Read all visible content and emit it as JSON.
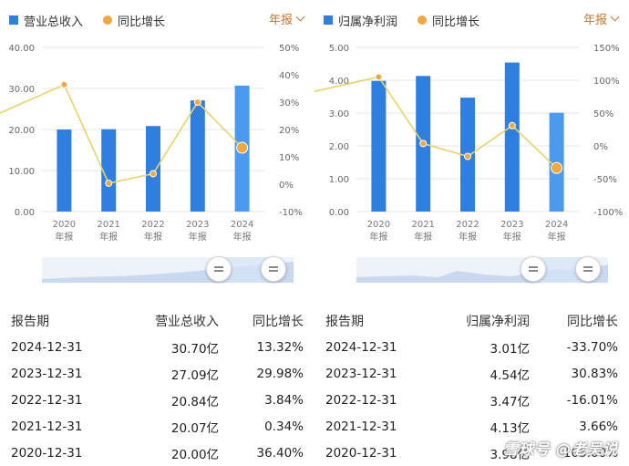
{
  "left": {
    "legend": {
      "bar": "营业总收入",
      "line": "同比增长"
    },
    "period": "年报",
    "y_left_ticks": [
      "40.00",
      "30.00",
      "20.00",
      "10.00",
      "0.00"
    ],
    "y_right_ticks": [
      "50%",
      "40%",
      "30%",
      "20%",
      "10%",
      "0%",
      "-10%"
    ],
    "x_labels": [
      [
        "2020",
        "年报"
      ],
      [
        "2021",
        "年报"
      ],
      [
        "2022",
        "年报"
      ],
      [
        "2023",
        "年报"
      ],
      [
        "2024",
        "年报"
      ]
    ],
    "table": {
      "headers": [
        "报告期",
        "营业总收入",
        "同比增长"
      ],
      "rows": [
        [
          "2024-12-31",
          "30.70亿",
          "13.32%"
        ],
        [
          "2023-12-31",
          "27.09亿",
          "29.98%"
        ],
        [
          "2022-12-31",
          "20.84亿",
          "3.84%"
        ],
        [
          "2021-12-31",
          "20.07亿",
          "0.34%"
        ],
        [
          "2020-12-31",
          "20.00亿",
          "36.40%"
        ]
      ]
    }
  },
  "right": {
    "legend": {
      "bar": "归属净利润",
      "line": "同比增长"
    },
    "period": "年报",
    "y_left_ticks": [
      "5.00",
      "4.00",
      "3.00",
      "2.00",
      "1.00",
      "0.00"
    ],
    "y_right_ticks": [
      "150%",
      "100%",
      "50%",
      "0%",
      "-50%",
      "-100%"
    ],
    "x_labels": [
      [
        "2020",
        "年报"
      ],
      [
        "2021",
        "年报"
      ],
      [
        "2022",
        "年报"
      ],
      [
        "2023",
        "年报"
      ],
      [
        "2024",
        "年报"
      ]
    ],
    "table": {
      "headers": [
        "报告期",
        "归属净利润",
        "同比增长"
      ],
      "rows": [
        [
          "2024-12-31",
          "3.01亿",
          "-33.70%"
        ],
        [
          "2023-12-31",
          "4.54亿",
          "30.83%"
        ],
        [
          "2022-12-31",
          "3.47亿",
          "-16.01%"
        ],
        [
          "2021-12-31",
          "4.13亿",
          "3.66%"
        ],
        [
          "2020-12-31",
          "3.98亿",
          "105.00%"
        ]
      ]
    }
  },
  "colors": {
    "bar": "#2f7fe0",
    "bar_highlight": "#4a9af0",
    "line": "#e6d46a",
    "dot": "#f2a83a",
    "positive": "#d6383a",
    "negative": "#1c9a3b",
    "period": "#c8742b"
  },
  "watermark": "雪球号 @老吴说",
  "chart_data": [
    {
      "type": "bar",
      "categories": [
        "2020",
        "2021",
        "2022",
        "2023",
        "2024"
      ],
      "series": [
        {
          "name": "营业总收入",
          "values": [
            20.0,
            20.07,
            20.84,
            27.09,
            30.7
          ],
          "axis": "left"
        },
        {
          "name": "同比增长",
          "values": [
            36.4,
            0.34,
            3.84,
            29.98,
            13.32
          ],
          "axis": "right",
          "type": "line",
          "lead_in": 26
        }
      ],
      "ylim": [
        0,
        40
      ],
      "y2lim": [
        -10,
        50
      ],
      "grid": true,
      "legend": "top-left"
    },
    {
      "type": "bar",
      "categories": [
        "2020",
        "2021",
        "2022",
        "2023",
        "2024"
      ],
      "series": [
        {
          "name": "归属净利润",
          "values": [
            3.98,
            4.13,
            3.47,
            4.54,
            3.01
          ],
          "axis": "left"
        },
        {
          "name": "同比增长",
          "values": [
            105.0,
            3.66,
            -16.01,
            30.83,
            -33.7
          ],
          "axis": "right",
          "type": "line",
          "lead_in": 83
        }
      ],
      "ylim": [
        0,
        5
      ],
      "y2lim": [
        -100,
        150
      ],
      "grid": true,
      "legend": "top-left"
    }
  ]
}
